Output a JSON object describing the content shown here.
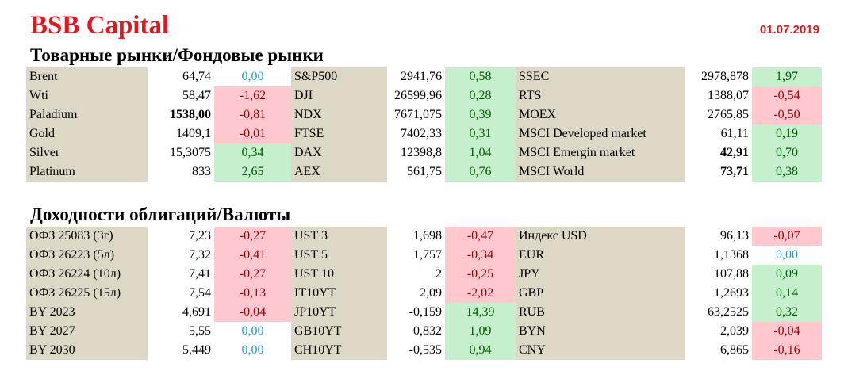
{
  "header": {
    "brand": "BSB Capital",
    "date": "01.07.2019"
  },
  "sections": [
    {
      "title": "Товарные рынки/Фондовые рынки",
      "rows": [
        [
          {
            "name": "Brent",
            "value": "64,74",
            "change": "0,00",
            "dir": "zero"
          },
          {
            "name": "S&P500",
            "value": "2941,76",
            "change": "0,58",
            "dir": "pos"
          },
          {
            "name": "SSEC",
            "value": "2978,878",
            "change": "1,97",
            "dir": "pos"
          }
        ],
        [
          {
            "name": "Wti",
            "value": "58,47",
            "change": "-1,62",
            "dir": "neg"
          },
          {
            "name": "DJI",
            "value": "26599,96",
            "change": "0,28",
            "dir": "pos"
          },
          {
            "name": "RTS",
            "value": "1388,07",
            "change": "-0,54",
            "dir": "neg"
          }
        ],
        [
          {
            "name": "Paladium",
            "value": "1538,00",
            "change": "-0,81",
            "dir": "neg",
            "bold": true
          },
          {
            "name": "NDX",
            "value": "7671,075",
            "change": "0,39",
            "dir": "pos"
          },
          {
            "name": "MOEX",
            "value": "2765,85",
            "change": "-0,50",
            "dir": "neg"
          }
        ],
        [
          {
            "name": "Gold",
            "value": "1409,1",
            "change": "-0,01",
            "dir": "neg"
          },
          {
            "name": "FTSE",
            "value": "7402,33",
            "change": "0,31",
            "dir": "pos"
          },
          {
            "name": "MSCI Developed market",
            "value": "61,11",
            "change": "0,19",
            "dir": "pos"
          }
        ],
        [
          {
            "name": "Silver",
            "value": "15,3075",
            "change": "0,34",
            "dir": "pos"
          },
          {
            "name": "DAX",
            "value": "12398,8",
            "change": "1,04",
            "dir": "pos"
          },
          {
            "name": "MSCI Emergin market",
            "value": "42,91",
            "change": "0,70",
            "dir": "pos",
            "bold": true
          }
        ],
        [
          {
            "name": "Platinum",
            "value": "833",
            "change": "2,65",
            "dir": "pos"
          },
          {
            "name": "AEX",
            "value": "561,75",
            "change": "0,76",
            "dir": "pos"
          },
          {
            "name": "MSCI World",
            "value": "73,71",
            "change": "0,38",
            "dir": "pos",
            "bold": true
          }
        ]
      ]
    },
    {
      "title": "Доходности облигаций/Валюты",
      "rows": [
        [
          {
            "name": "ОФЗ 25083 (3г)",
            "value": "7,23",
            "change": "-0,27",
            "dir": "neg"
          },
          {
            "name": "UST 3",
            "value": "1,698",
            "change": "-0,47",
            "dir": "neg"
          },
          {
            "name": "Индекс USD",
            "value": "96,13",
            "change": "-0,07",
            "dir": "neg"
          }
        ],
        [
          {
            "name": "ОФЗ 26223 (5л)",
            "value": "7,32",
            "change": "-0,41",
            "dir": "neg"
          },
          {
            "name": "UST 5",
            "value": "1,757",
            "change": "-0,34",
            "dir": "neg"
          },
          {
            "name": "EUR",
            "value": "1,1368",
            "change": "0,00",
            "dir": "zero"
          }
        ],
        [
          {
            "name": "ОФЗ 26224 (10л)",
            "value": "7,41",
            "change": "-0,27",
            "dir": "neg"
          },
          {
            "name": "UST 10",
            "value": "2",
            "change": "-0,25",
            "dir": "neg"
          },
          {
            "name": "JPY",
            "value": "107,88",
            "change": "0,09",
            "dir": "pos"
          }
        ],
        [
          {
            "name": "ОФЗ 26225 (15л)",
            "value": "7,54",
            "change": "-0,13",
            "dir": "neg"
          },
          {
            "name": "IT10YT",
            "value": "2,09",
            "change": "-2,02",
            "dir": "neg"
          },
          {
            "name": "GBP",
            "value": "1,2693",
            "change": "0,14",
            "dir": "pos"
          }
        ],
        [
          {
            "name": "BY 2023",
            "value": "4,691",
            "change": "-0,04",
            "dir": "neg"
          },
          {
            "name": "JP10YT",
            "value": "-0,159",
            "change": "14,39",
            "dir": "pos"
          },
          {
            "name": "RUB",
            "value": "63,2525",
            "change": "0,32",
            "dir": "pos"
          }
        ],
        [
          {
            "name": "BY 2027",
            "value": "5,55",
            "change": "0,00",
            "dir": "zero"
          },
          {
            "name": "GB10YT",
            "value": "0,832",
            "change": "1,09",
            "dir": "pos"
          },
          {
            "name": "BYN",
            "value": "2,039",
            "change": "-0,04",
            "dir": "neg"
          }
        ],
        [
          {
            "name": "BY 2030",
            "value": "5,449",
            "change": "0,00",
            "dir": "zero"
          },
          {
            "name": "CH10YT",
            "value": "-0,535",
            "change": "0,94",
            "dir": "pos"
          },
          {
            "name": "CNY",
            "value": "6,865",
            "change": "-0,16",
            "dir": "neg"
          }
        ]
      ]
    }
  ]
}
